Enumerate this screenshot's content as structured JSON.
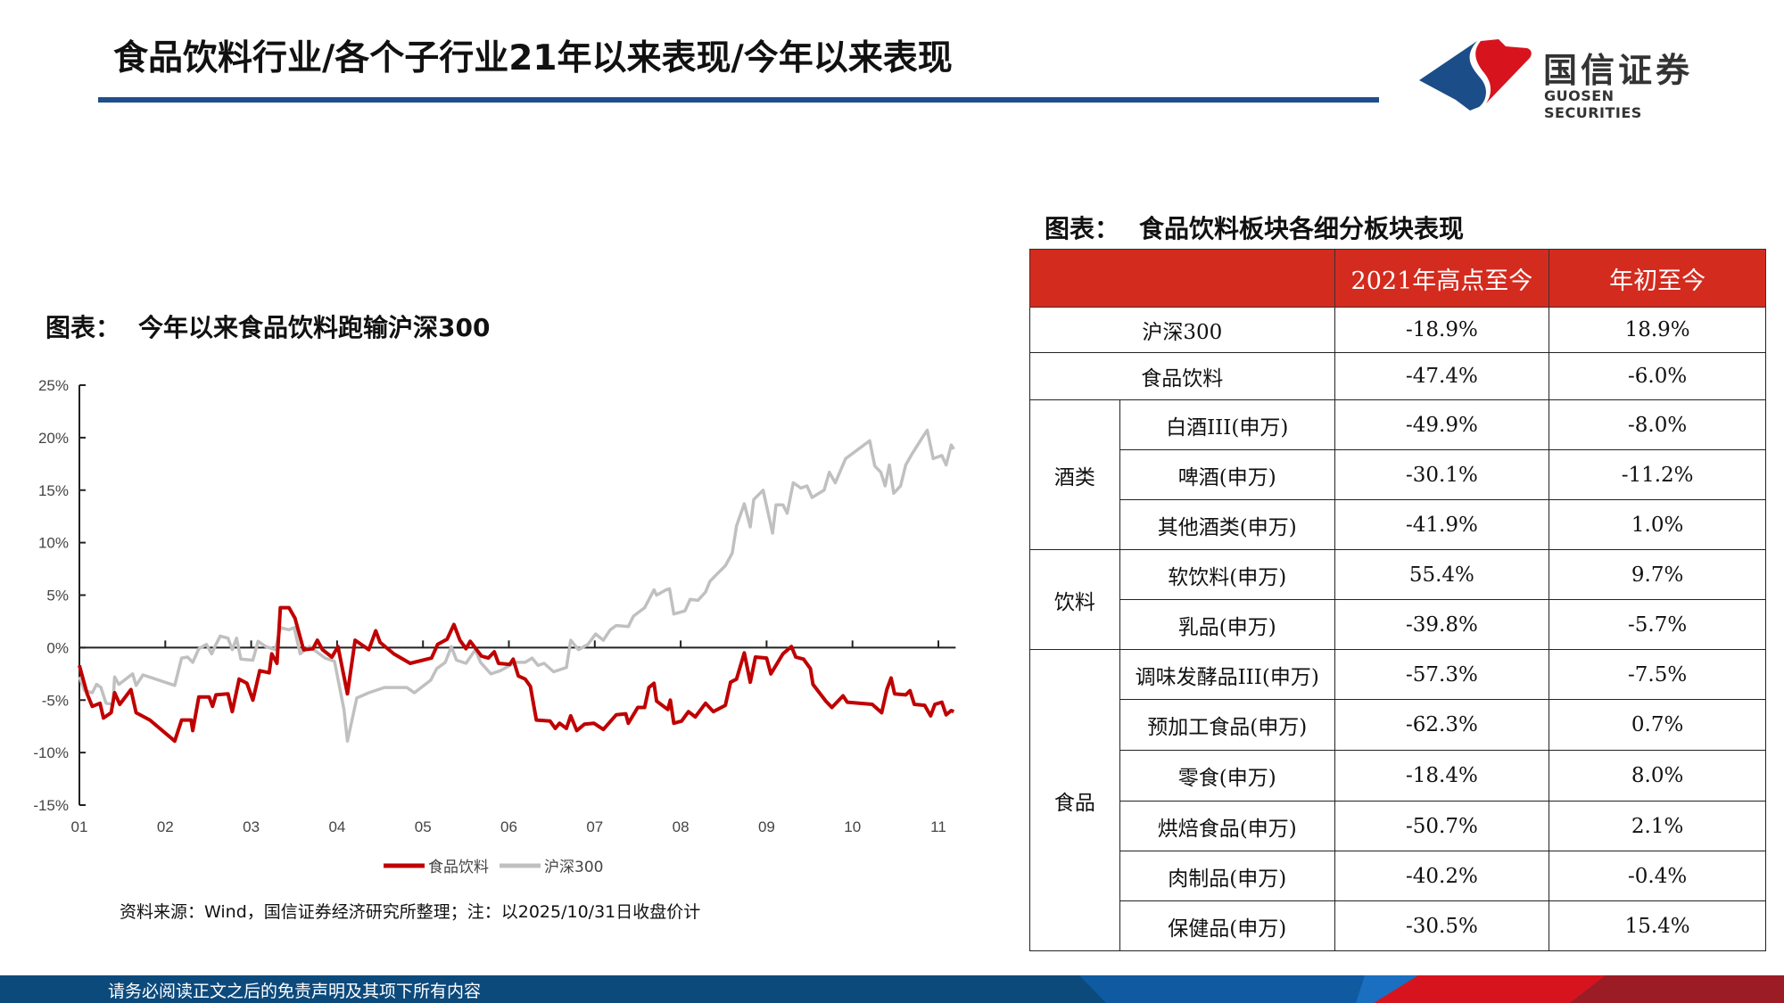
{
  "header": {
    "title": "食品饮料行业/各个子行业21年以来表现/今年以来表现",
    "logo": {
      "cn": "国信证券",
      "en": "GUOSEN SECURITIES",
      "colors": {
        "red": "#d7141e",
        "blue": "#1b4d88"
      }
    }
  },
  "left_panel": {
    "label": "图表：",
    "title": "今年以来食品饮料跑输沪深300",
    "source": "资料来源：Wind，国信证券经济研究所整理；注：以2025/10/31日收盘价计"
  },
  "chart_data": {
    "type": "line",
    "title": "今年以来食品饮料跑输沪深300",
    "xlabel": "",
    "ylabel": "",
    "x_unit": "month",
    "x_ticks": [
      "01",
      "02",
      "03",
      "04",
      "05",
      "06",
      "07",
      "08",
      "09",
      "10",
      "11"
    ],
    "y_ticks": [
      "25%",
      "20%",
      "15%",
      "10%",
      "5%",
      "0%",
      "-5%",
      "-10%",
      "-15%"
    ],
    "ylim": [
      -15,
      25
    ],
    "xlim": [
      1,
      11.18
    ],
    "grid": false,
    "legend_position": "bottom",
    "series": [
      {
        "name": "食品饮料",
        "color": "#c00000",
        "points": [
          [
            1.0,
            -1.7
          ],
          [
            1.09,
            -4.4
          ],
          [
            1.15,
            -5.6
          ],
          [
            1.24,
            -5.3
          ],
          [
            1.28,
            -6.7
          ],
          [
            1.37,
            -6.2
          ],
          [
            1.41,
            -4.3
          ],
          [
            1.47,
            -5.4
          ],
          [
            1.6,
            -4.0
          ],
          [
            1.66,
            -6.2
          ],
          [
            1.82,
            -6.9
          ],
          [
            2.11,
            -8.9
          ],
          [
            2.19,
            -6.9
          ],
          [
            2.3,
            -6.9
          ],
          [
            2.32,
            -7.9
          ],
          [
            2.39,
            -4.7
          ],
          [
            2.51,
            -4.7
          ],
          [
            2.55,
            -5.6
          ],
          [
            2.59,
            -4.5
          ],
          [
            2.73,
            -4.4
          ],
          [
            2.78,
            -6.1
          ],
          [
            2.86,
            -3.0
          ],
          [
            2.95,
            -3.4
          ],
          [
            3.02,
            -5.0
          ],
          [
            3.1,
            -2.2
          ],
          [
            3.21,
            -2.4
          ],
          [
            3.24,
            -0.6
          ],
          [
            3.3,
            -1.5
          ],
          [
            3.34,
            3.8
          ],
          [
            3.44,
            3.8
          ],
          [
            3.51,
            2.8
          ],
          [
            3.61,
            -0.2
          ],
          [
            3.72,
            -0.1
          ],
          [
            3.77,
            0.7
          ],
          [
            3.83,
            -0.2
          ],
          [
            3.94,
            -0.9
          ],
          [
            4.01,
            0.1
          ],
          [
            4.12,
            -4.4
          ],
          [
            4.21,
            0.7
          ],
          [
            4.37,
            -0.2
          ],
          [
            4.45,
            1.6
          ],
          [
            4.5,
            0.5
          ],
          [
            4.66,
            -0.6
          ],
          [
            4.85,
            -1.5
          ],
          [
            5.1,
            -1.0
          ],
          [
            5.17,
            0.3
          ],
          [
            5.28,
            0.8
          ],
          [
            5.36,
            2.2
          ],
          [
            5.43,
            0.7
          ],
          [
            5.5,
            -0.1
          ],
          [
            5.55,
            0.6
          ],
          [
            5.68,
            -0.8
          ],
          [
            5.76,
            -1.0
          ],
          [
            5.83,
            -0.4
          ],
          [
            5.88,
            -1.5
          ],
          [
            6.01,
            -1.6
          ],
          [
            6.05,
            -1.1
          ],
          [
            6.11,
            -2.7
          ],
          [
            6.19,
            -3.0
          ],
          [
            6.25,
            -3.7
          ],
          [
            6.32,
            -6.9
          ],
          [
            6.48,
            -7.0
          ],
          [
            6.54,
            -7.7
          ],
          [
            6.59,
            -7.2
          ],
          [
            6.67,
            -7.7
          ],
          [
            6.72,
            -6.5
          ],
          [
            6.79,
            -7.9
          ],
          [
            6.88,
            -7.3
          ],
          [
            6.99,
            -7.2
          ],
          [
            7.1,
            -7.8
          ],
          [
            7.25,
            -6.4
          ],
          [
            7.36,
            -6.3
          ],
          [
            7.39,
            -7.2
          ],
          [
            7.5,
            -5.7
          ],
          [
            7.58,
            -5.7
          ],
          [
            7.63,
            -3.8
          ],
          [
            7.69,
            -3.4
          ],
          [
            7.72,
            -5.1
          ],
          [
            7.85,
            -5.9
          ],
          [
            7.88,
            -5.0
          ],
          [
            7.92,
            -7.2
          ],
          [
            8.01,
            -7.0
          ],
          [
            8.09,
            -6.1
          ],
          [
            8.17,
            -6.6
          ],
          [
            8.29,
            -5.3
          ],
          [
            8.38,
            -6.1
          ],
          [
            8.52,
            -5.5
          ],
          [
            8.58,
            -3.3
          ],
          [
            8.65,
            -3.0
          ],
          [
            8.74,
            -0.5
          ],
          [
            8.81,
            -3.3
          ],
          [
            8.87,
            -0.9
          ],
          [
            9.0,
            -1.0
          ],
          [
            9.05,
            -2.5
          ],
          [
            9.19,
            -0.6
          ],
          [
            9.29,
            0.1
          ],
          [
            9.34,
            -0.9
          ],
          [
            9.43,
            -1.1
          ],
          [
            9.51,
            -2.0
          ],
          [
            9.54,
            -3.5
          ],
          [
            9.69,
            -5.1
          ],
          [
            9.76,
            -5.7
          ],
          [
            9.89,
            -4.6
          ],
          [
            9.94,
            -5.2
          ],
          [
            10.23,
            -5.4
          ],
          [
            10.34,
            -6.2
          ],
          [
            10.4,
            -4.0
          ],
          [
            10.45,
            -2.9
          ],
          [
            10.49,
            -4.4
          ],
          [
            10.62,
            -4.5
          ],
          [
            10.67,
            -4.1
          ],
          [
            10.72,
            -5.4
          ],
          [
            10.84,
            -5.5
          ],
          [
            10.91,
            -6.5
          ],
          [
            10.96,
            -5.4
          ],
          [
            11.04,
            -5.2
          ],
          [
            11.09,
            -6.4
          ],
          [
            11.15,
            -6.0
          ],
          [
            11.18,
            -6.1
          ]
        ]
      },
      {
        "name": "沪深300",
        "color": "#c0c0c0",
        "points": [
          [
            1.0,
            -2.8
          ],
          [
            1.06,
            -4.1
          ],
          [
            1.15,
            -4.3
          ],
          [
            1.2,
            -3.5
          ],
          [
            1.25,
            -3.8
          ],
          [
            1.31,
            -5.3
          ],
          [
            1.39,
            -5.4
          ],
          [
            1.41,
            -2.8
          ],
          [
            1.46,
            -3.5
          ],
          [
            1.62,
            -2.5
          ],
          [
            1.66,
            -3.6
          ],
          [
            1.74,
            -2.6
          ],
          [
            2.11,
            -3.6
          ],
          [
            2.19,
            -1.0
          ],
          [
            2.26,
            -0.9
          ],
          [
            2.32,
            -1.4
          ],
          [
            2.39,
            -0.1
          ],
          [
            2.48,
            0.3
          ],
          [
            2.54,
            -0.6
          ],
          [
            2.59,
            0.3
          ],
          [
            2.64,
            1.1
          ],
          [
            2.73,
            0.9
          ],
          [
            2.78,
            -0.2
          ],
          [
            2.83,
            0.9
          ],
          [
            2.88,
            -1.1
          ],
          [
            3.02,
            -1.2
          ],
          [
            3.08,
            0.6
          ],
          [
            3.17,
            0.1
          ],
          [
            3.28,
            -0.2
          ],
          [
            3.34,
            1.9
          ],
          [
            3.44,
            1.7
          ],
          [
            3.5,
            1.9
          ],
          [
            3.57,
            -0.6
          ],
          [
            3.68,
            0.1
          ],
          [
            3.86,
            -1.0
          ],
          [
            3.97,
            -1.3
          ],
          [
            4.08,
            -5.9
          ],
          [
            4.12,
            -8.9
          ],
          [
            4.23,
            -4.8
          ],
          [
            4.37,
            -4.3
          ],
          [
            4.55,
            -3.8
          ],
          [
            4.81,
            -3.8
          ],
          [
            4.9,
            -4.3
          ],
          [
            5.09,
            -3.1
          ],
          [
            5.16,
            -2.0
          ],
          [
            5.26,
            -1.4
          ],
          [
            5.33,
            0.1
          ],
          [
            5.39,
            -1.2
          ],
          [
            5.5,
            -1.5
          ],
          [
            5.61,
            -0.2
          ],
          [
            5.67,
            -1.4
          ],
          [
            5.79,
            -2.5
          ],
          [
            5.9,
            -2.2
          ],
          [
            6.01,
            -1.7
          ],
          [
            6.08,
            -1.4
          ],
          [
            6.19,
            -1.4
          ],
          [
            6.27,
            -1.0
          ],
          [
            6.34,
            -1.7
          ],
          [
            6.41,
            -1.5
          ],
          [
            6.52,
            -2.3
          ],
          [
            6.67,
            -1.9
          ],
          [
            6.72,
            0.7
          ],
          [
            6.81,
            -0.2
          ],
          [
            6.92,
            0.3
          ],
          [
            7.01,
            1.3
          ],
          [
            7.1,
            0.7
          ],
          [
            7.18,
            1.7
          ],
          [
            7.25,
            2.1
          ],
          [
            7.39,
            2.0
          ],
          [
            7.45,
            3.0
          ],
          [
            7.58,
            3.8
          ],
          [
            7.69,
            5.5
          ],
          [
            7.72,
            5.0
          ],
          [
            7.83,
            5.5
          ],
          [
            7.87,
            5.6
          ],
          [
            7.92,
            3.2
          ],
          [
            8.05,
            3.5
          ],
          [
            8.11,
            4.6
          ],
          [
            8.2,
            4.5
          ],
          [
            8.29,
            5.3
          ],
          [
            8.34,
            6.3
          ],
          [
            8.41,
            6.9
          ],
          [
            8.52,
            7.8
          ],
          [
            8.6,
            9.0
          ],
          [
            8.65,
            11.6
          ],
          [
            8.74,
            13.7
          ],
          [
            8.81,
            11.5
          ],
          [
            8.85,
            14.1
          ],
          [
            8.96,
            15.0
          ],
          [
            9.07,
            10.9
          ],
          [
            9.11,
            13.6
          ],
          [
            9.19,
            13.6
          ],
          [
            9.24,
            12.8
          ],
          [
            9.31,
            15.7
          ],
          [
            9.4,
            15.2
          ],
          [
            9.47,
            15.4
          ],
          [
            9.53,
            14.3
          ],
          [
            9.67,
            15.0
          ],
          [
            9.73,
            16.7
          ],
          [
            9.8,
            15.7
          ],
          [
            9.92,
            18.0
          ],
          [
            10.2,
            19.7
          ],
          [
            10.26,
            17.3
          ],
          [
            10.33,
            16.7
          ],
          [
            10.38,
            15.4
          ],
          [
            10.43,
            17.4
          ],
          [
            10.48,
            14.7
          ],
          [
            10.56,
            15.4
          ],
          [
            10.62,
            17.4
          ],
          [
            10.69,
            18.4
          ],
          [
            10.82,
            20.1
          ],
          [
            10.87,
            20.7
          ],
          [
            10.94,
            18.0
          ],
          [
            11.04,
            18.3
          ],
          [
            11.09,
            17.4
          ],
          [
            11.15,
            19.3
          ],
          [
            11.18,
            18.9
          ]
        ]
      }
    ]
  },
  "right_panel": {
    "label": "图表：",
    "title": "食品饮料板块各细分板块表现",
    "header_color": "#d42b1f",
    "columns": [
      "",
      "2021年高点至今",
      "年初至今"
    ],
    "rows": [
      {
        "group": "",
        "name": "沪深300",
        "since_2021_high": "-18.9%",
        "ytd": "18.9%"
      },
      {
        "group": "",
        "name": "食品饮料",
        "since_2021_high": "-47.4%",
        "ytd": "-6.0%"
      },
      {
        "group": "酒类",
        "name": "白酒III(申万)",
        "since_2021_high": "-49.9%",
        "ytd": "-8.0%"
      },
      {
        "group": "酒类",
        "name": "啤酒(申万)",
        "since_2021_high": "-30.1%",
        "ytd": "-11.2%"
      },
      {
        "group": "酒类",
        "name": "其他酒类(申万)",
        "since_2021_high": "-41.9%",
        "ytd": "1.0%"
      },
      {
        "group": "饮料",
        "name": "软饮料(申万)",
        "since_2021_high": "55.4%",
        "ytd": "9.7%"
      },
      {
        "group": "饮料",
        "name": "乳品(申万)",
        "since_2021_high": "-39.8%",
        "ytd": "-5.7%"
      },
      {
        "group": "食品",
        "name": "调味发酵品III(申万)",
        "since_2021_high": "-57.3%",
        "ytd": "-7.5%"
      },
      {
        "group": "食品",
        "name": "预加工食品(申万)",
        "since_2021_high": "-62.3%",
        "ytd": "0.7%"
      },
      {
        "group": "食品",
        "name": "零食(申万)",
        "since_2021_high": "-18.4%",
        "ytd": "8.0%"
      },
      {
        "group": "食品",
        "name": "烘焙食品(申万)",
        "since_2021_high": "-50.7%",
        "ytd": "2.1%"
      },
      {
        "group": "食品",
        "name": "肉制品(申万)",
        "since_2021_high": "-40.2%",
        "ytd": "-0.4%"
      },
      {
        "group": "食品",
        "name": "保健品(申万)",
        "since_2021_high": "-30.5%",
        "ytd": "15.4%"
      }
    ]
  },
  "footer": {
    "text": "请务必阅读正文之后的免责声明及其项下所有内容",
    "color": "#0d4a7c"
  }
}
